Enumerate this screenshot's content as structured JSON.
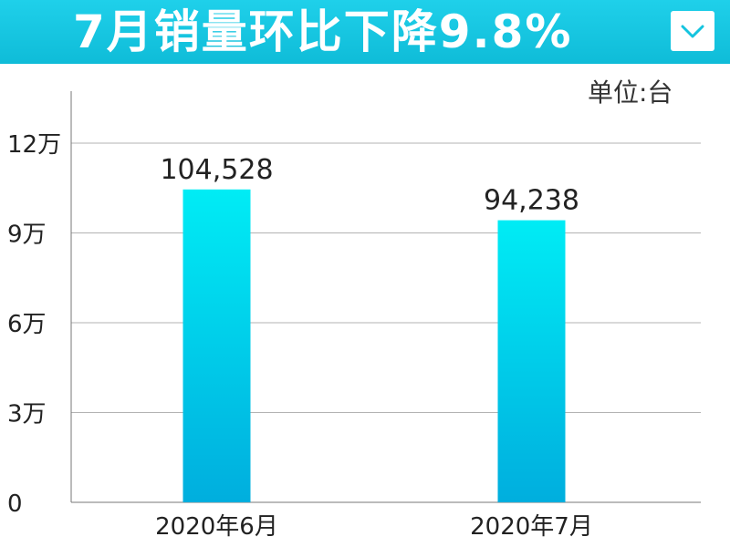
{
  "header": {
    "title": "7月销量环比下降9.8%",
    "dropdown_icon": "chevron-down-icon"
  },
  "colors": {
    "header_bg": "#14c4df",
    "bar_top": "#00ecf5",
    "bar_bottom": "#00aede",
    "grid": "#b3b3b3"
  },
  "chart_data": {
    "type": "bar",
    "title": "7月销量环比下降9.8%",
    "unit_label": "单位:台",
    "categories": [
      "2020年6月",
      "2020年7月"
    ],
    "values": [
      104528,
      94238
    ],
    "value_labels": [
      "104,528",
      "94,238"
    ],
    "yticks": [
      0,
      30000,
      60000,
      90000,
      120000
    ],
    "ytick_labels": [
      "0",
      "3万",
      "6万",
      "9万",
      "12万"
    ],
    "ylim": [
      0,
      120000
    ],
    "grid": true,
    "legend": "none"
  }
}
